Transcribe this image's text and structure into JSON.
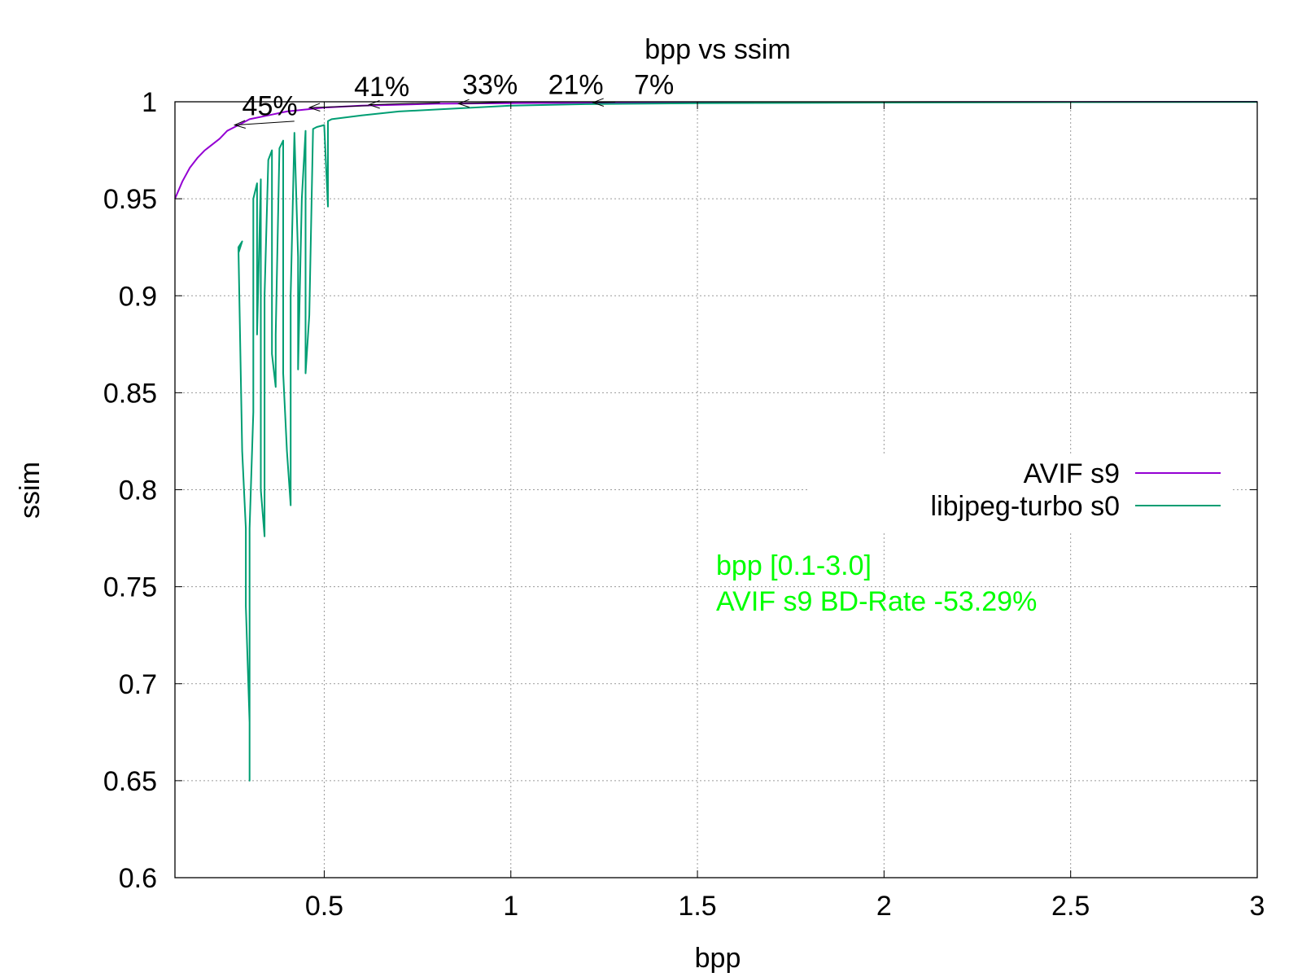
{
  "chart_data": {
    "type": "line",
    "title": "bpp vs ssim",
    "xlabel": "bpp",
    "ylabel": "ssim",
    "xlim": [
      0.1,
      3.0
    ],
    "ylim": [
      0.6,
      1.0
    ],
    "x_ticks": [
      0.5,
      1,
      1.5,
      2,
      2.5,
      3
    ],
    "x_tick_labels": [
      "0.5",
      "1",
      "1.5",
      "2",
      "2.5",
      "3"
    ],
    "y_ticks": [
      0.6,
      0.65,
      0.7,
      0.75,
      0.8,
      0.85,
      0.9,
      0.95,
      1.0
    ],
    "y_tick_labels": [
      "0.6",
      "0.65",
      "0.7",
      "0.75",
      "0.8",
      "0.85",
      "0.9",
      "0.95",
      "1"
    ],
    "grid": true,
    "legend_position": "right",
    "series": [
      {
        "name": "AVIF s9",
        "color": "#9400d3",
        "points": [
          [
            0.1,
            0.95
          ],
          [
            0.12,
            0.959
          ],
          [
            0.14,
            0.966
          ],
          [
            0.16,
            0.971
          ],
          [
            0.18,
            0.975
          ],
          [
            0.2,
            0.978
          ],
          [
            0.22,
            0.981
          ],
          [
            0.24,
            0.985
          ],
          [
            0.26,
            0.987
          ],
          [
            0.28,
            0.989
          ],
          [
            0.3,
            0.991
          ],
          [
            0.35,
            0.993
          ],
          [
            0.4,
            0.995
          ],
          [
            0.45,
            0.996
          ],
          [
            0.5,
            0.997
          ],
          [
            0.6,
            0.998
          ],
          [
            0.7,
            0.9985
          ],
          [
            0.8,
            0.999
          ],
          [
            1.0,
            0.9993
          ],
          [
            1.2,
            0.9995
          ],
          [
            1.5,
            0.9997
          ],
          [
            2.0,
            0.9998
          ],
          [
            2.5,
            0.9999
          ],
          [
            3.0,
            1.0
          ]
        ]
      },
      {
        "name": "libjpeg-turbo s0",
        "color": "#009e73",
        "points": [
          [
            0.27,
            0.922
          ],
          [
            0.28,
            0.928
          ],
          [
            0.27,
            0.925
          ],
          [
            0.28,
            0.82
          ],
          [
            0.29,
            0.78
          ],
          [
            0.29,
            0.74
          ],
          [
            0.3,
            0.68
          ],
          [
            0.3,
            0.65
          ],
          [
            0.3,
            0.68
          ],
          [
            0.3,
            0.78
          ],
          [
            0.31,
            0.84
          ],
          [
            0.31,
            0.95
          ],
          [
            0.32,
            0.958
          ],
          [
            0.32,
            0.88
          ],
          [
            0.33,
            0.96
          ],
          [
            0.33,
            0.8
          ],
          [
            0.34,
            0.776
          ],
          [
            0.34,
            0.9
          ],
          [
            0.35,
            0.97
          ],
          [
            0.36,
            0.975
          ],
          [
            0.36,
            0.87
          ],
          [
            0.37,
            0.853
          ],
          [
            0.37,
            0.88
          ],
          [
            0.38,
            0.976
          ],
          [
            0.39,
            0.98
          ],
          [
            0.39,
            0.86
          ],
          [
            0.4,
            0.82
          ],
          [
            0.41,
            0.792
          ],
          [
            0.41,
            0.9
          ],
          [
            0.42,
            0.984
          ],
          [
            0.43,
            0.92
          ],
          [
            0.43,
            0.862
          ],
          [
            0.44,
            0.95
          ],
          [
            0.45,
            0.985
          ],
          [
            0.45,
            0.86
          ],
          [
            0.46,
            0.89
          ],
          [
            0.47,
            0.986
          ],
          [
            0.48,
            0.987
          ],
          [
            0.5,
            0.988
          ],
          [
            0.51,
            0.946
          ],
          [
            0.51,
            0.99
          ],
          [
            0.52,
            0.991
          ],
          [
            0.6,
            0.993
          ],
          [
            0.7,
            0.995
          ],
          [
            0.8,
            0.996
          ],
          [
            1.0,
            0.998
          ],
          [
            1.2,
            0.9988
          ],
          [
            1.5,
            0.9993
          ],
          [
            2.0,
            0.9996
          ],
          [
            2.5,
            0.9998
          ],
          [
            3.0,
            0.9999
          ]
        ]
      }
    ],
    "annotations": [
      {
        "text": "45%",
        "x": 0.28,
        "y": 0.993,
        "arrow_from": [
          0.42,
          0.99
        ],
        "arrow_to": [
          0.26,
          0.988
        ]
      },
      {
        "text": "41%",
        "x": 0.58,
        "y": 1.003,
        "arrow_from": [
          0.62,
          0.998
        ],
        "arrow_to": [
          0.46,
          0.997
        ]
      },
      {
        "text": "33%",
        "x": 0.87,
        "y": 1.004,
        "arrow_from": [
          0.81,
          0.9995
        ],
        "arrow_to": [
          0.62,
          0.9985
        ]
      },
      {
        "text": "21%",
        "x": 1.1,
        "y": 1.004,
        "arrow_from": [
          1.02,
          1.0
        ],
        "arrow_to": [
          0.86,
          0.999
        ]
      },
      {
        "text": "7%",
        "x": 1.33,
        "y": 1.004,
        "arrow_from": [
          1.28,
          0.9998
        ],
        "arrow_to": [
          1.22,
          0.9996
        ]
      }
    ],
    "bd_rate_text": {
      "line1": "bpp [0.1-3.0]",
      "line2": "AVIF s9 BD-Rate -53.29%",
      "color": "#00ff00"
    }
  }
}
